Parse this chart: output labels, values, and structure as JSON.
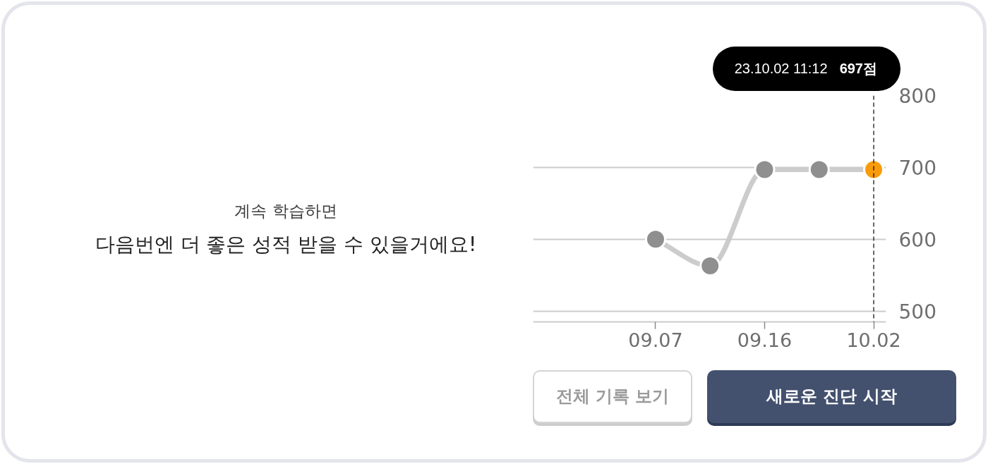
{
  "chart_data": {
    "type": "line",
    "categories": [
      "09.07",
      null,
      "09.16",
      null,
      "10.02"
    ],
    "series": [
      {
        "color": "#cccccc",
        "colors": [
          "#8f8f8f",
          "#8f8f8f",
          "#8f8f8f",
          "#8f8f8f",
          "#f89c0c"
        ],
        "values": [
          600,
          563,
          697,
          697,
          697
        ]
      }
    ],
    "ylim": [
      485,
      800
    ],
    "yticks": [
      500,
      600,
      700,
      800
    ],
    "grid": "y",
    "marker": "circle",
    "line_style": "solid",
    "ref_lines": [
      {
        "axis": "x",
        "value": "10.02",
        "color": "#000000",
        "line_style": "dashed"
      }
    ],
    "annotations": [
      "계속 학습하면",
      "다음번엔 더 좋은 성적 받을 수 있을거에요!",
      "전체 기록 보기",
      "새로운 진단 시작",
      "23.10.02 11:12",
      "697점"
    ]
  }
}
